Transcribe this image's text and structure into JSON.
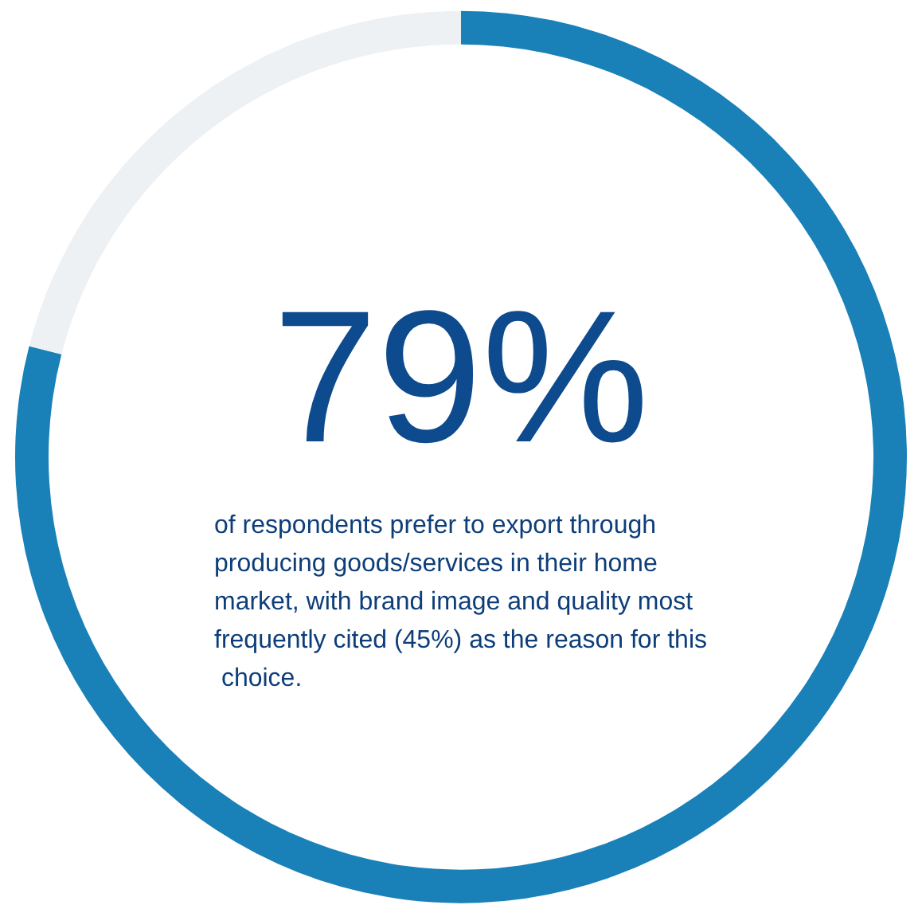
{
  "chart_data": {
    "type": "donut",
    "categories": [
      null,
      null
    ],
    "values": [
      79,
      21
    ],
    "colors": [
      "#1a80b8",
      "#eef1f4"
    ],
    "value_labels": [
      "79%",
      null
    ],
    "annotations": [
      "of respondents prefer to export through producing goods/services in their home market, with brand image and quality most frequently cited (45%) as the reason for this choice."
    ]
  }
}
